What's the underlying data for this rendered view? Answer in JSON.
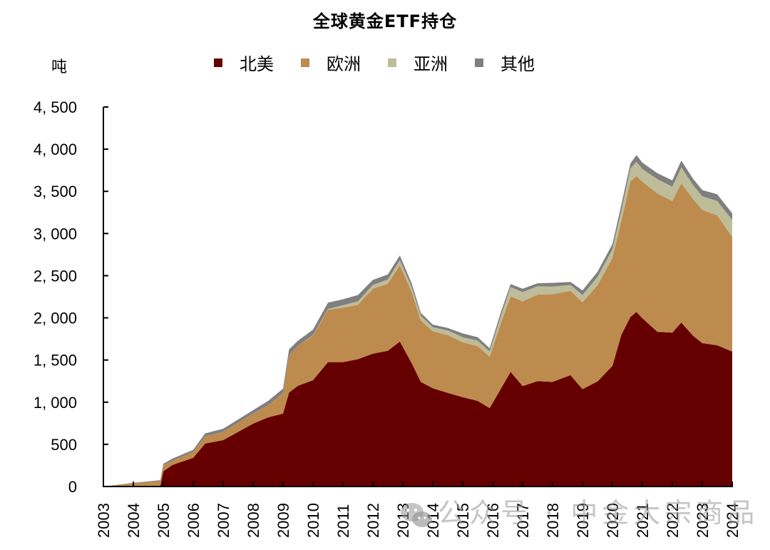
{
  "title": "全球黄金ETF持仓",
  "y_unit": "吨",
  "legend": [
    {
      "label": "北美",
      "color": "#660000"
    },
    {
      "label": "欧洲",
      "color": "#BE8B4E"
    },
    {
      "label": "亚洲",
      "color": "#BEBC99"
    },
    {
      "label": "其他",
      "color": "#7F7F7F"
    }
  ],
  "watermark": "公众号 · 中金大宗商品",
  "chart_data": {
    "type": "area",
    "stacked": true,
    "title": "全球黄金ETF持仓",
    "xlabel": "",
    "ylabel": "吨",
    "ylim": [
      0,
      4500
    ],
    "xlim": [
      2003,
      2024
    ],
    "yticks": [
      0,
      500,
      1000,
      1500,
      2000,
      2500,
      3000,
      3500,
      4000,
      4500
    ],
    "ytick_labels": [
      "0",
      "500",
      "1, 000",
      "1, 500",
      "2, 000",
      "2, 500",
      "3, 000",
      "3, 500",
      "4, 000",
      "4, 500"
    ],
    "xticks": [
      2003,
      2004,
      2005,
      2006,
      2007,
      2008,
      2009,
      2010,
      2011,
      2012,
      2013,
      2014,
      2015,
      2016,
      2017,
      2018,
      2019,
      2020,
      2021,
      2022,
      2023,
      2024
    ],
    "xtick_labels": [
      "2003",
      "2004",
      "2005",
      "2006",
      "2007",
      "2008",
      "2009",
      "2010",
      "2011",
      "2012",
      "2013",
      "2014",
      "2015",
      "2016",
      "2017",
      "2018",
      "2019",
      "2020",
      "2021",
      "2022",
      "2023",
      "2024"
    ],
    "grid": false,
    "legend_position": "top",
    "x": [
      2003.0,
      2004.0,
      2004.9,
      2005.0,
      2005.3,
      2006.0,
      2006.4,
      2007.0,
      2008.0,
      2008.5,
      2009.0,
      2009.2,
      2009.5,
      2010.0,
      2010.5,
      2011.0,
      2011.5,
      2012.0,
      2012.5,
      2012.9,
      2013.3,
      2013.6,
      2014.0,
      2014.5,
      2015.0,
      2015.5,
      2015.9,
      2016.3,
      2016.6,
      2017.0,
      2017.5,
      2018.0,
      2018.6,
      2019.0,
      2019.5,
      2020.0,
      2020.3,
      2020.6,
      2020.8,
      2021.0,
      2021.5,
      2022.0,
      2022.3,
      2022.7,
      2023.0,
      2023.5,
      2024.0
    ],
    "series": [
      {
        "name": "北美",
        "color": "#660000",
        "values": [
          0,
          0,
          0,
          180,
          255,
          340,
          510,
          550,
          745,
          820,
          865,
          1115,
          1195,
          1260,
          1475,
          1475,
          1510,
          1575,
          1610,
          1720,
          1460,
          1240,
          1165,
          1110,
          1060,
          1015,
          930,
          1175,
          1360,
          1190,
          1250,
          1240,
          1320,
          1155,
          1245,
          1430,
          1800,
          2010,
          2070,
          1995,
          1835,
          1825,
          1945,
          1785,
          1700,
          1675,
          1600
        ]
      },
      {
        "name": "欧洲",
        "color": "#BE8B4E",
        "values": [
          0,
          40,
          65,
          75,
          50,
          70,
          85,
          100,
          120,
          145,
          245,
          440,
          475,
          530,
          620,
          645,
          645,
          770,
          795,
          905,
          845,
          730,
          675,
          685,
          650,
          650,
          610,
          790,
          895,
          1005,
          1025,
          1040,
          1000,
          1030,
          1140,
          1280,
          1355,
          1610,
          1610,
          1620,
          1640,
          1560,
          1650,
          1620,
          1580,
          1540,
          1360
        ]
      },
      {
        "name": "亚洲",
        "color": "#BEBC99",
        "values": [
          0,
          0,
          0,
          0,
          0,
          0,
          0,
          0,
          0,
          0,
          0,
          0,
          0,
          5,
          10,
          30,
          40,
          45,
          50,
          60,
          55,
          55,
          50,
          55,
          60,
          65,
          60,
          85,
          110,
          110,
          100,
          90,
          70,
          85,
          100,
          105,
          120,
          150,
          170,
          150,
          170,
          170,
          190,
          165,
          160,
          170,
          200
        ]
      },
      {
        "name": "其他",
        "color": "#7F7F7F",
        "values": [
          0,
          5,
          10,
          15,
          25,
          25,
          35,
          35,
          40,
          50,
          50,
          70,
          60,
          65,
          75,
          70,
          75,
          60,
          60,
          55,
          45,
          35,
          30,
          30,
          45,
          40,
          40,
          45,
          35,
          40,
          35,
          45,
          35,
          55,
          60,
          60,
          70,
          60,
          80,
          75,
          70,
          75,
          80,
          75,
          75,
          80,
          80
        ]
      }
    ]
  }
}
